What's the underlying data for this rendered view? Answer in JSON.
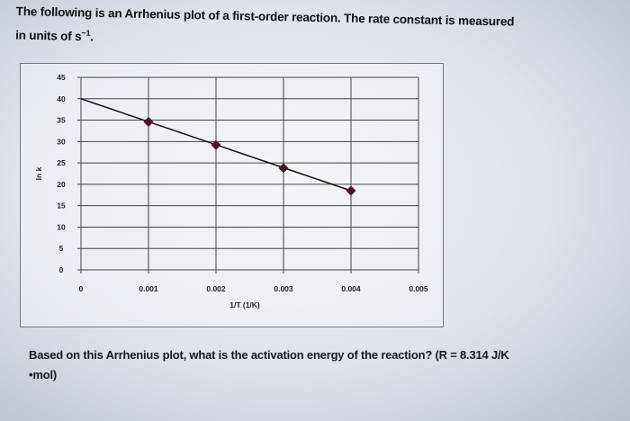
{
  "question": {
    "intro_line1": "The following is an Arrhenius plot of a first-order reaction. The rate constant is measured",
    "intro_line2_prefix": "in units of s",
    "intro_line2_sup": "−1",
    "intro_line2_suffix": ".",
    "prompt_line1": "Based on this Arrhenius plot, what is the activation energy of the reaction? (R = 8.314 J/K",
    "prompt_line2": "•mol)"
  },
  "chart_data": {
    "type": "line",
    "title": "",
    "xlabel": "1/T (1/K)",
    "ylabel": "ln k",
    "xlim": [
      0,
      0.005
    ],
    "ylim": [
      0,
      45
    ],
    "x_ticks": [
      "0",
      "0.001",
      "0.002",
      "0.003",
      "0.004",
      "0.005"
    ],
    "y_ticks": [
      "0",
      "5",
      "10",
      "15",
      "20",
      "25",
      "30",
      "35",
      "40",
      "45"
    ],
    "grid": true,
    "series": [
      {
        "x": [
          0.001,
          0.002,
          0.003,
          0.004
        ],
        "y": [
          34.6,
          29.2,
          23.8,
          18.5
        ],
        "marker": "diamond",
        "color": "#4a1030"
      }
    ],
    "trendline": {
      "x": [
        0,
        0.004
      ],
      "y": [
        40,
        18.5
      ],
      "color": "#111111"
    }
  }
}
